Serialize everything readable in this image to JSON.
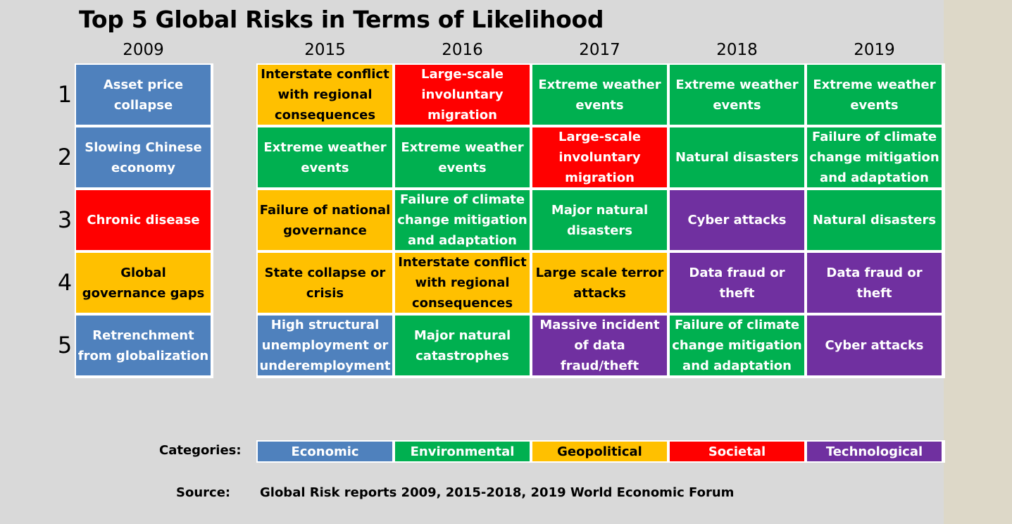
{
  "chart_data": {
    "type": "table",
    "title": "Top 5 Global Risks in Terms of Likelihood",
    "years": [
      "2009",
      "2015",
      "2016",
      "2017",
      "2018",
      "2019"
    ],
    "ranks": [
      "1",
      "2",
      "3",
      "4",
      "5"
    ],
    "categories": [
      {
        "name": "Economic",
        "color": "#4f81bd"
      },
      {
        "name": "Environmental",
        "color": "#00b050"
      },
      {
        "name": "Geopolitical",
        "color": "#ffc000"
      },
      {
        "name": "Societal",
        "color": "#ff0000"
      },
      {
        "name": "Technological",
        "color": "#7030a0"
      }
    ],
    "columns": [
      {
        "year": "2009",
        "risks": [
          {
            "text": "Asset price collapse",
            "category": "Economic"
          },
          {
            "text": "Slowing Chinese economy",
            "category": "Economic"
          },
          {
            "text": "Chronic disease",
            "category": "Societal"
          },
          {
            "text": "Global governance gaps",
            "category": "Geopolitical"
          },
          {
            "text": "Retrenchment from globalization",
            "category": "Economic"
          }
        ]
      },
      {
        "year": "2015",
        "risks": [
          {
            "text": "Interstate conflict with regional consequences",
            "category": "Geopolitical"
          },
          {
            "text": "Extreme weather events",
            "category": "Environmental"
          },
          {
            "text": "Failure of national governance",
            "category": "Geopolitical"
          },
          {
            "text": "State collapse or crisis",
            "category": "Geopolitical"
          },
          {
            "text": "High structural unemployment or underemployment",
            "category": "Economic"
          }
        ]
      },
      {
        "year": "2016",
        "risks": [
          {
            "text": "Large-scale involuntary migration",
            "category": "Societal"
          },
          {
            "text": "Extreme weather events",
            "category": "Environmental"
          },
          {
            "text": "Failure of climate change mitigation and adaptation",
            "category": "Environmental"
          },
          {
            "text": "Interstate conflict with regional consequences",
            "category": "Geopolitical"
          },
          {
            "text": "Major natural catastrophes",
            "category": "Environmental"
          }
        ]
      },
      {
        "year": "2017",
        "risks": [
          {
            "text": "Extreme weather events",
            "category": "Environmental"
          },
          {
            "text": "Large-scale involuntary migration",
            "category": "Societal"
          },
          {
            "text": "Major natural disasters",
            "category": "Environmental"
          },
          {
            "text": "Large scale terror attacks",
            "category": "Geopolitical"
          },
          {
            "text": "Massive incident of data fraud/theft",
            "category": "Technological"
          }
        ]
      },
      {
        "year": "2018",
        "risks": [
          {
            "text": "Extreme weather events",
            "category": "Environmental"
          },
          {
            "text": "Natural disasters",
            "category": "Environmental"
          },
          {
            "text": "Cyber attacks",
            "category": "Technological"
          },
          {
            "text": "Data  fraud or theft",
            "category": "Technological"
          },
          {
            "text": "Failure of climate change mitigation and adaptation",
            "category": "Environmental"
          }
        ]
      },
      {
        "year": "2019",
        "risks": [
          {
            "text": "Extreme weather events",
            "category": "Environmental"
          },
          {
            "text": "Failure of climate change mitigation and adaptation",
            "category": "Environmental"
          },
          {
            "text": "Natural disasters",
            "category": "Environmental"
          },
          {
            "text": "Data  fraud or theft",
            "category": "Technological"
          },
          {
            "text": "Cyber attacks",
            "category": "Technological"
          }
        ]
      }
    ]
  },
  "legend": {
    "label": "Categories:"
  },
  "source": {
    "label": "Source:",
    "text": "Global Risk reports 2009, 2015-2018, 2019 World Economic Forum"
  }
}
